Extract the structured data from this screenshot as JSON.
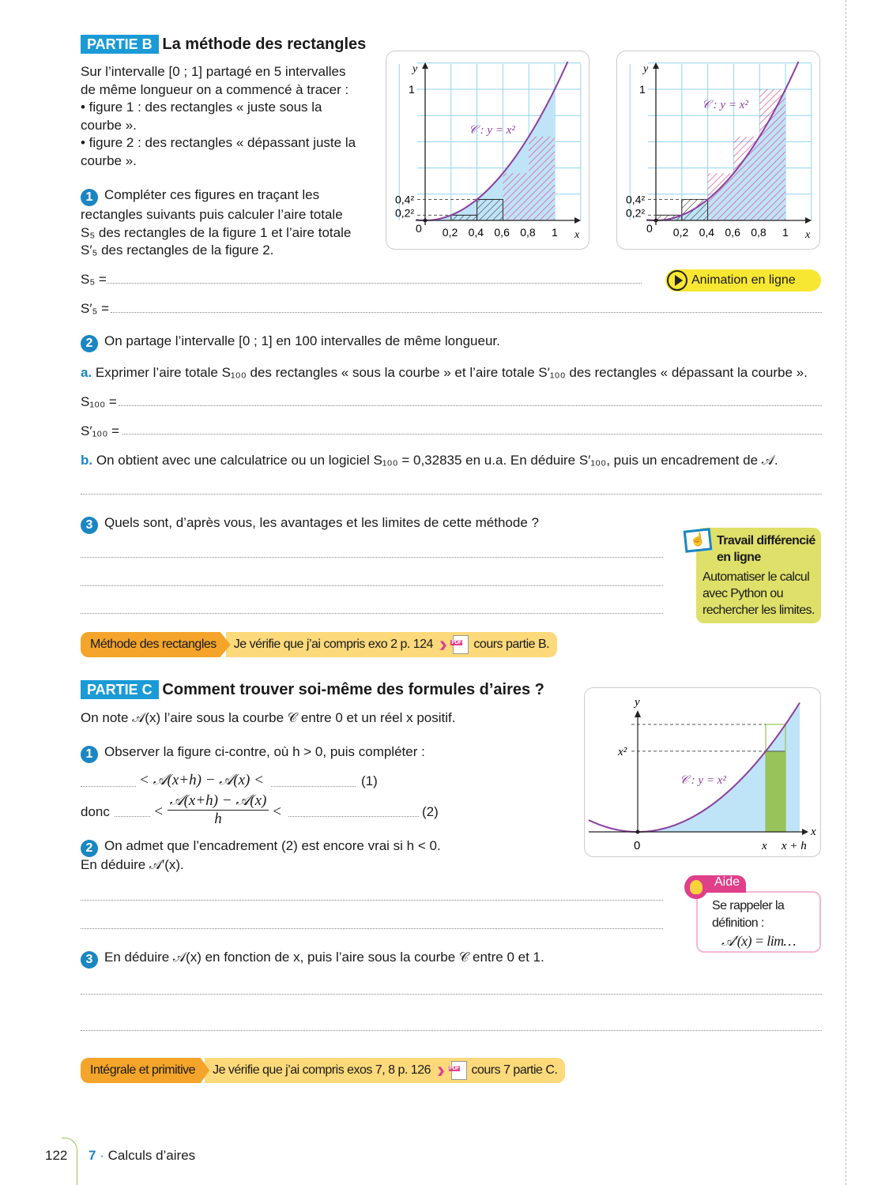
{
  "partB": {
    "badge": "PARTIE B",
    "title": "La méthode des rectangles",
    "intro": [
      "Sur l’intervalle [0 ; 1] partagé en 5 intervalles",
      "de même longueur on a commencé à tracer :",
      "• figure 1 : des rectangles « juste sous la",
      "courbe ».",
      "• figure 2 : des rectangles « dépassant juste la",
      "courbe »."
    ],
    "q1": {
      "num": "1",
      "lines": [
        "Compléter ces figures en traçant les",
        "rectangles suivants puis calculer l’aire totale",
        "S₅ des rectangles de la figure 1 et l’aire totale",
        "S′₅ des rectangles de la figure 2."
      ]
    },
    "s5": "S₅ =",
    "s5p": "S′₅ =",
    "animation": "Animation en ligne",
    "q2": {
      "num": "2",
      "text": "On partage l’intervalle [0 ; 1] en 100 intervalles de même longueur.",
      "a_label": "a.",
      "a_text": "Exprimer l’aire totale S₁₀₀ des rectangles « sous la courbe » et l’aire totale S′₁₀₀ des rectangles « dépassant la courbe ».",
      "s100": "S₁₀₀ =",
      "s100p": "S′₁₀₀ =",
      "b_label": "b.",
      "b_text": "On obtient avec une calculatrice ou un logiciel S₁₀₀ = 0,32835 en u.a. En déduire S′₁₀₀, puis un encadrement de 𝒜."
    },
    "q3": {
      "num": "3",
      "text": "Quels sont, d’après vous, les avantages et les limites de cette méthode ?"
    },
    "travail": {
      "title": "Travail différencié en ligne",
      "text": "Automatiser le calcul avec Python ou rechercher les limites."
    },
    "bar": {
      "tag": "Méthode des rectangles",
      "check": "Je vérifie que j’ai compris exo 2 p. 124",
      "cours": "cours partie B."
    }
  },
  "graph": {
    "y": "y",
    "x": "x",
    "one": "1",
    "zero": "0",
    "t04": "0,4²",
    "t02": "0,2²",
    "xticks": [
      "0,2",
      "0,4",
      "0,6",
      "0,8",
      "1"
    ],
    "curve": "𝒞 : y = x²"
  },
  "partC": {
    "badge": "PARTIE C",
    "title": "Comment trouver soi-même des formules d’aires ?",
    "intro": "On note 𝒜(x) l’aire sous la courbe 𝒞 entre 0 et un réel x positif.",
    "q1": {
      "num": "1",
      "text": "Observer la figure ci-contre, où h > 0, puis compléter :",
      "ineq1": "< 𝒜(x+h) − 𝒜(x) <",
      "tag1": "(1)",
      "donc": "donc",
      "frac_num": "𝒜(x+h) − 𝒜(x)",
      "frac_den": "h",
      "tag2": "(2)",
      "lt": "<"
    },
    "q2": {
      "num": "2",
      "text": "On admet que l’encadrement (2) est encore vrai si h < 0.",
      "text2": "En déduire 𝒜′(x)."
    },
    "q3": {
      "num": "3",
      "text": "En déduire 𝒜(x) en fonction de x, puis l’aire sous la courbe 𝒞 entre 0 et 1."
    },
    "graph": {
      "y": "y",
      "x": "x",
      "x2": "x²",
      "zero": "0",
      "xt": "x",
      "xh": "x + h",
      "curve": "𝒞 : y = x²"
    },
    "aide": {
      "tag": "Aide",
      "text": "Se rappeler la définition :",
      "formula": "𝒜′(x) = lim…"
    },
    "bar": {
      "tag": "Intégrale et primitive",
      "check": "Je vérifie que j’ai compris exos 7, 8 p. 126",
      "cours": "cours 7 partie C."
    }
  },
  "footer": {
    "page": "122",
    "chapter_num": "7",
    "chapter": "Calculs d’aires"
  },
  "colors": {
    "accent": "#1a9ad6",
    "curve": "#8b3fa0",
    "fill": "#bfe3f7",
    "hatch": "#e0408a",
    "green": "#96c45a",
    "yellow": "#dfe06a"
  }
}
